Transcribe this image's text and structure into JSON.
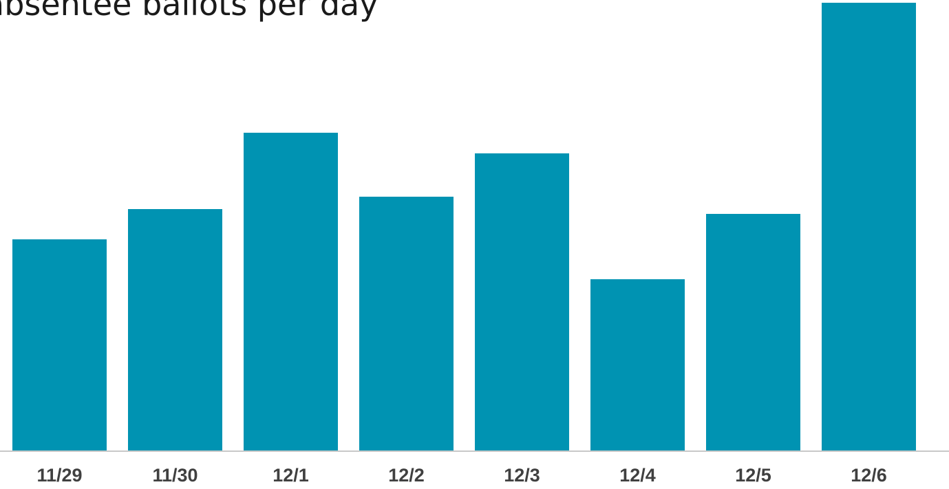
{
  "chart_data": {
    "type": "bar",
    "title": "absentee ballots per day",
    "categories": [
      "11/29",
      "11/30",
      "12/1",
      "12/2",
      "12/3",
      "12/4",
      "12/5",
      "12/6"
    ],
    "values": [
      308,
      352,
      463,
      370,
      433,
      250,
      345,
      652
    ],
    "bar_color": "#0093b2",
    "ylim": [
      0,
      656
    ],
    "grid": false,
    "legend": "none",
    "xlabel": "",
    "ylabel": ""
  }
}
